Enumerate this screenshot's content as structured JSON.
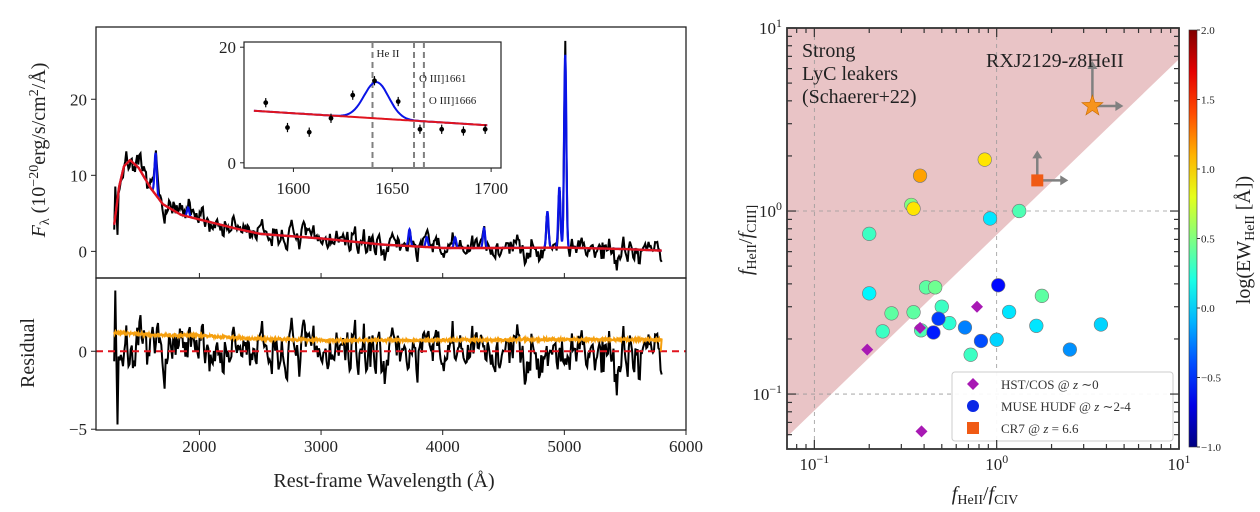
{
  "chart_data": [
    {
      "type": "line",
      "title": "",
      "xlabel": "Rest-frame Wavelength (Å)",
      "ylabel_parts": [
        {
          "t": "F",
          "s": "i"
        },
        {
          "t": "λ",
          "s": "sub"
        },
        {
          "t": "  (10"
        },
        {
          "t": "−20",
          "s": "sup"
        },
        {
          "t": "erg/s/cm"
        },
        {
          "t": "2",
          "s": "sup"
        },
        {
          "t": "/Å)"
        }
      ],
      "residual_ylabel": "Residual",
      "xlim": [
        1150,
        6000
      ],
      "top_ylim": [
        -3.5,
        29.5
      ],
      "res_ylim": [
        -5.05,
        4.7
      ],
      "xticks": [
        {
          "v": 2000,
          "label": "2000"
        },
        {
          "v": 3000,
          "label": "3000"
        },
        {
          "v": 4000,
          "label": "4000"
        },
        {
          "v": 5000,
          "label": "5000"
        },
        {
          "v": 6000,
          "label": "6000"
        }
      ],
      "top_yticks": [
        {
          "v": 0,
          "label": "0"
        },
        {
          "v": 10,
          "label": "10"
        },
        {
          "v": 20,
          "label": "20"
        }
      ],
      "res_yticks": [
        {
          "v": -5,
          "label": "−5"
        },
        {
          "v": 0,
          "label": "0"
        }
      ],
      "wave_range": [
        1300,
        5800
      ],
      "continuum_model": [
        [
          1300,
          3.5
        ],
        [
          1340,
          8.5
        ],
        [
          1380,
          11.2
        ],
        [
          1430,
          12
        ],
        [
          1500,
          11
        ],
        [
          1600,
          8.3
        ],
        [
          1700,
          6.2
        ],
        [
          1850,
          4.8
        ],
        [
          2000,
          4.2
        ],
        [
          2300,
          3.0
        ],
        [
          2500,
          2.3
        ],
        [
          3000,
          1.7
        ],
        [
          3500,
          0.9
        ],
        [
          4000,
          0.45
        ],
        [
          4500,
          0.45
        ],
        [
          5000,
          0.5
        ],
        [
          5500,
          0.3
        ],
        [
          5800,
          0.1
        ]
      ],
      "emission_lines": [
        {
          "wave": 1640,
          "amp": 5.5
        },
        {
          "wave": 1907,
          "amp": 1.2
        },
        {
          "wave": 3727,
          "amp": 2.2
        },
        {
          "wave": 3869,
          "amp": 1.3
        },
        {
          "wave": 4102,
          "amp": 1.4
        },
        {
          "wave": 4340,
          "amp": 2.6
        },
        {
          "wave": 4861,
          "amp": 4.8
        },
        {
          "wave": 4959,
          "amp": 8.0
        },
        {
          "wave": 5007,
          "amp": 25.5
        }
      ],
      "noise_sigma": 1.3,
      "error_spectrum": [
        [
          1300,
          1.2
        ],
        [
          1600,
          1.05
        ],
        [
          2000,
          1.0
        ],
        [
          2500,
          0.8
        ],
        [
          3000,
          0.7
        ],
        [
          4000,
          0.72
        ],
        [
          5000,
          0.75
        ],
        [
          5790,
          0.75
        ]
      ],
      "residual_zero_line": 0,
      "colors": {
        "data": "#000000",
        "lines_model": "#0a14e6",
        "continuum_model": "#e0141e",
        "error": "#f5a00f",
        "zero": "#e0141e"
      }
    },
    {
      "type": "scatter",
      "title": "inset",
      "xlim": [
        1575,
        1705
      ],
      "ylim": [
        -0.9,
        20.9
      ],
      "xticks": [
        {
          "v": 1600,
          "label": "1600"
        },
        {
          "v": 1650,
          "label": "1650"
        },
        {
          "v": 1700,
          "label": "1700"
        }
      ],
      "yticks": [
        {
          "v": 0,
          "label": "0"
        },
        {
          "v": 20,
          "label": "20"
        }
      ],
      "points": [
        [
          1586,
          10.4
        ],
        [
          1597,
          6.1
        ],
        [
          1608,
          5.3
        ],
        [
          1619,
          7.7
        ],
        [
          1630,
          11.7
        ],
        [
          1641,
          14.2
        ],
        [
          1653,
          10.6
        ],
        [
          1664,
          5.8
        ],
        [
          1675,
          5.8
        ],
        [
          1686,
          5.5
        ],
        [
          1697,
          5.8
        ]
      ],
      "yerr": 0.8,
      "continuum": [
        [
          1580,
          9.0
        ],
        [
          1698,
          6.5
        ]
      ],
      "gaussian": {
        "center": 1642,
        "amp": 6.3,
        "sigma": 6.2
      },
      "markers": [
        {
          "wave": 1640,
          "label": "He II"
        },
        {
          "wave": 1661,
          "label": "O III]1661"
        },
        {
          "wave": 1666,
          "label": "O III]1666"
        }
      ]
    },
    {
      "type": "scatter",
      "xlabel_parts": [
        {
          "t": "f",
          "s": "i"
        },
        {
          "t": "HeII",
          "s": "sub"
        },
        {
          "t": "/"
        },
        {
          "t": "f",
          "s": "i"
        },
        {
          "t": "CIV",
          "s": "sub"
        }
      ],
      "ylabel_parts": [
        {
          "t": "f",
          "s": "i"
        },
        {
          "t": "HeII",
          "s": "sub"
        },
        {
          "t": "/"
        },
        {
          "t": "f",
          "s": "i"
        },
        {
          "t": "CIII]",
          "s": "sub"
        }
      ],
      "xscale": "log",
      "yscale": "log",
      "xlim": [
        0.0708,
        10
      ],
      "ylim": [
        0.0501,
        10
      ],
      "xticks": [
        {
          "v": 0.1,
          "base": "10",
          "exp": "−1"
        },
        {
          "v": 1,
          "base": "10",
          "exp": "0"
        },
        {
          "v": 10,
          "base": "10",
          "exp": "1"
        }
      ],
      "yticks": [
        {
          "v": 0.1,
          "base": "10",
          "exp": "−1"
        },
        {
          "v": 1,
          "base": "10",
          "exp": "0"
        },
        {
          "v": 10,
          "base": "10",
          "exp": "1"
        }
      ],
      "grid": true,
      "shade_boundary": {
        "slope": 0.96,
        "intercept_log": -0.13
      },
      "shade_color": "#e9c4c6",
      "region_label": [
        "Strong",
        "LyC leakers",
        "(Schaerer+22)"
      ],
      "region_label_color": "#e8141e",
      "target": {
        "label": "RXJ2129-z8HeII",
        "x": 3.35,
        "y": 3.75,
        "color": "#f7941d",
        "lower_limit": true
      },
      "cr7": {
        "x": 1.67,
        "y": 1.47,
        "color": "#f05a14",
        "lower_limit": true
      },
      "muse_points": [
        [
          0.38,
          1.56,
          1.15
        ],
        [
          0.86,
          1.91,
          0.95
        ],
        [
          0.34,
          1.08,
          0.5
        ],
        [
          0.35,
          1.03,
          0.95
        ],
        [
          0.2,
          0.75,
          0.3
        ],
        [
          0.92,
          0.91,
          0.05
        ],
        [
          1.33,
          1.0,
          0.35
        ],
        [
          0.2,
          0.355,
          0.1
        ],
        [
          0.41,
          0.383,
          0.4
        ],
        [
          0.46,
          0.383,
          0.45
        ],
        [
          0.265,
          0.276,
          0.4
        ],
        [
          0.237,
          0.22,
          0.3
        ],
        [
          0.35,
          0.28,
          0.4
        ],
        [
          0.385,
          0.223,
          0.35
        ],
        [
          0.5,
          0.3,
          0.3
        ],
        [
          0.55,
          0.244,
          0.25
        ],
        [
          0.48,
          0.258,
          -0.45
        ],
        [
          0.45,
          0.217,
          -0.55
        ],
        [
          0.67,
          0.231,
          -0.25
        ],
        [
          0.82,
          0.195,
          -0.4
        ],
        [
          0.72,
          0.164,
          0.3
        ],
        [
          1.0,
          0.198,
          0.0
        ],
        [
          1.02,
          0.393,
          -0.6
        ],
        [
          1.17,
          0.281,
          0.05
        ],
        [
          1.77,
          0.344,
          0.4
        ],
        [
          1.65,
          0.236,
          0.05
        ],
        [
          3.73,
          0.24,
          0.0
        ],
        [
          2.52,
          0.175,
          -0.2
        ]
      ],
      "hst_cos_points": [
        [
          0.195,
          0.175
        ],
        [
          0.38,
          0.23
        ],
        [
          0.78,
          0.3
        ],
        [
          0.387,
          0.0625
        ]
      ],
      "hst_color": "#a819b4",
      "legend": {
        "placement": "lower-right",
        "entries": [
          {
            "marker": "diamond",
            "color": "#a819b4",
            "parts": [
              {
                "t": "HST/COS @ "
              },
              {
                "t": "z",
                "s": "i"
              },
              {
                "t": " ∼0"
              }
            ]
          },
          {
            "marker": "circle",
            "color": "#0a28e6",
            "parts": [
              {
                "t": "MUSE HUDF @ "
              },
              {
                "t": "z",
                "s": "i"
              },
              {
                "t": " ∼2-4"
              }
            ]
          },
          {
            "marker": "square",
            "color": "#f05a14",
            "parts": [
              {
                "t": "CR7 @ "
              },
              {
                "t": "z",
                "s": "i"
              },
              {
                "t": " = 6.6"
              }
            ]
          }
        ]
      },
      "colorbar": {
        "cmap": "jet",
        "range": [
          -1.0,
          2.0
        ],
        "ticks": [
          {
            "v": 2.0,
            "label": "2.0"
          },
          {
            "v": 1.5,
            "label": "1.5"
          },
          {
            "v": 1.0,
            "label": "1.0"
          },
          {
            "v": 0.5,
            "label": "0.5"
          },
          {
            "v": 0.0,
            "label": "0.0"
          },
          {
            "v": -0.5,
            "label": "−0.5"
          },
          {
            "v": -1.0,
            "label": "−1.0"
          }
        ],
        "label_parts": [
          {
            "t": "log(EW"
          },
          {
            "t": "HeII",
            "s": "sub"
          },
          {
            "t": " [Å])"
          }
        ]
      }
    }
  ]
}
